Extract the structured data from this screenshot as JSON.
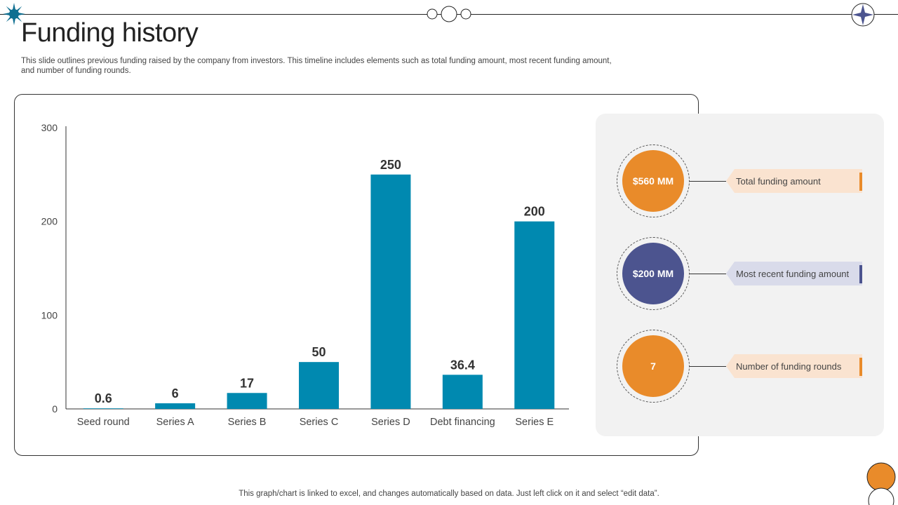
{
  "slide": {
    "title": "Funding history",
    "description": "This slide outlines previous funding raised by the company from investors. This timeline includes elements such as total funding amount, most recent funding amount, and number of funding rounds.",
    "footer_note": "This graph/chart is linked to excel, and changes automatically based on data. Just left click on it and select “edit data”."
  },
  "chart_data": {
    "type": "bar",
    "categories": [
      "Seed round",
      "Series A",
      "Series B",
      "Series C",
      "Series D",
      "Debt financing",
      "Series E"
    ],
    "values": [
      0.6,
      6,
      17,
      50,
      250,
      36.4,
      200
    ],
    "data_labels": [
      "0.6",
      "6",
      "17",
      "50",
      "250",
      "36.4",
      "200"
    ],
    "yticks": [
      0,
      100,
      200,
      300
    ],
    "ylim": [
      0,
      300
    ],
    "bar_color": "#0089b0",
    "grid": false,
    "legend": "none"
  },
  "stats": [
    {
      "value": "$560 MM",
      "label": "Total funding amount",
      "color": "#e98b2a",
      "tag_color": "#fae3d0"
    },
    {
      "value": "$200 MM",
      "label": "Most recent funding amount",
      "color": "#4c548f",
      "tag_color": "#d9dbea"
    },
    {
      "value": "7",
      "label": "Number of funding rounds",
      "color": "#e98b2a",
      "tag_color": "#fae3d0"
    }
  ],
  "decor": {
    "accent_orange": "#e98b2a",
    "accent_teal": "#0f6f91",
    "accent_navy": "#4c548f",
    "icons": [
      "sunburst-icon",
      "triple-circle-icon",
      "four-point-star-icon",
      "orange-dot-icon"
    ]
  }
}
